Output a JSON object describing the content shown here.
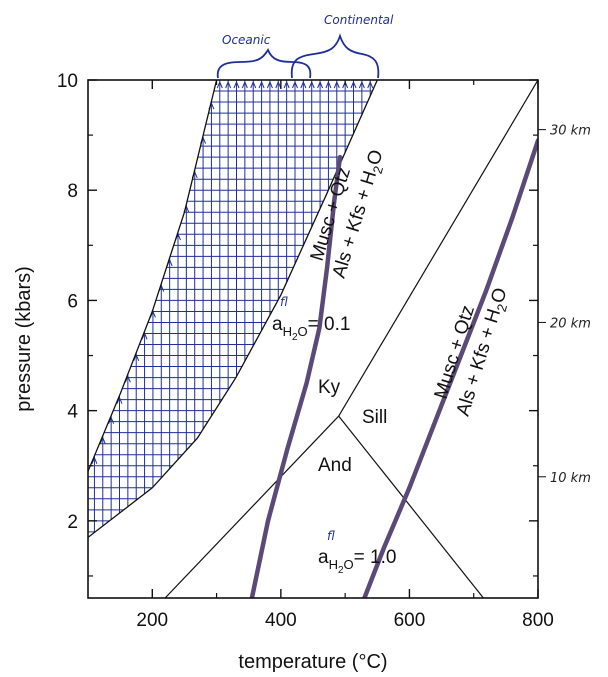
{
  "chart_data": {
    "type": "line",
    "title": "",
    "xlabel": "temperature (°C)",
    "ylabel": "pressure (kbars)",
    "xlim": [
      100,
      800
    ],
    "ylim": [
      0.6,
      10
    ],
    "x_ticks": [
      200,
      400,
      600,
      800
    ],
    "y_ticks": [
      2,
      4,
      6,
      8,
      10
    ],
    "x_tick_labels": [
      "200",
      "400",
      "600",
      "800"
    ],
    "y_tick_labels": [
      "2",
      "4",
      "6",
      "8",
      "10"
    ],
    "curves": {
      "shaded_lower_boundary": [
        [
          100,
          1.7
        ],
        [
          200,
          2.6
        ],
        [
          270,
          3.5
        ],
        [
          330,
          4.6
        ],
        [
          400,
          6.1
        ],
        [
          470,
          7.9
        ],
        [
          550,
          10.0
        ]
      ],
      "shaded_upper_boundary": [
        [
          100,
          2.9
        ],
        [
          150,
          4.3
        ],
        [
          200,
          5.8
        ],
        [
          250,
          7.6
        ],
        [
          300,
          10.0
        ]
      ],
      "melting_aH2O_0_1": [
        [
          355,
          0.6
        ],
        [
          380,
          2.0
        ],
        [
          410,
          3.3
        ],
        [
          440,
          4.5
        ],
        [
          460,
          5.5
        ],
        [
          472,
          6.6
        ],
        [
          483,
          7.8
        ],
        [
          492,
          8.6
        ]
      ],
      "melting_aH2O_1_0": [
        [
          530,
          0.6
        ],
        [
          560,
          1.5
        ],
        [
          600,
          2.6
        ],
        [
          640,
          3.8
        ],
        [
          680,
          5.0
        ],
        [
          720,
          6.2
        ],
        [
          760,
          7.5
        ],
        [
          800,
          8.9
        ]
      ],
      "ky_and": [
        [
          220,
          0.6
        ],
        [
          490,
          3.9
        ]
      ],
      "and_sill": [
        [
          490,
          3.9
        ],
        [
          715,
          0.6
        ]
      ],
      "ky_sill": [
        [
          490,
          3.9
        ],
        [
          800,
          10.0
        ]
      ]
    },
    "labels": {
      "ky": "Ky",
      "sill": "Sill",
      "and": "And",
      "reaction_top": "Musc + Qtz",
      "reaction_bottom": "Als + Kfs + H2O",
      "activity_low": "0.1",
      "activity_high": "1.0",
      "activity_symbol": "a",
      "activity_subscript": "H2O",
      "activity_superscript": "fl",
      "equals": "= "
    },
    "annotations": {
      "oceanic": "Oceanic",
      "continental": "Continental",
      "depths": [
        {
          "pressure": 9.1,
          "label": "30 km"
        },
        {
          "pressure": 5.6,
          "label": "20 km"
        },
        {
          "pressure": 2.8,
          "label": "10 km"
        }
      ]
    },
    "grid": false,
    "colors": {
      "hatch": "#1f2f9a",
      "curve": "#5b4a78",
      "axis": "#111111"
    }
  }
}
